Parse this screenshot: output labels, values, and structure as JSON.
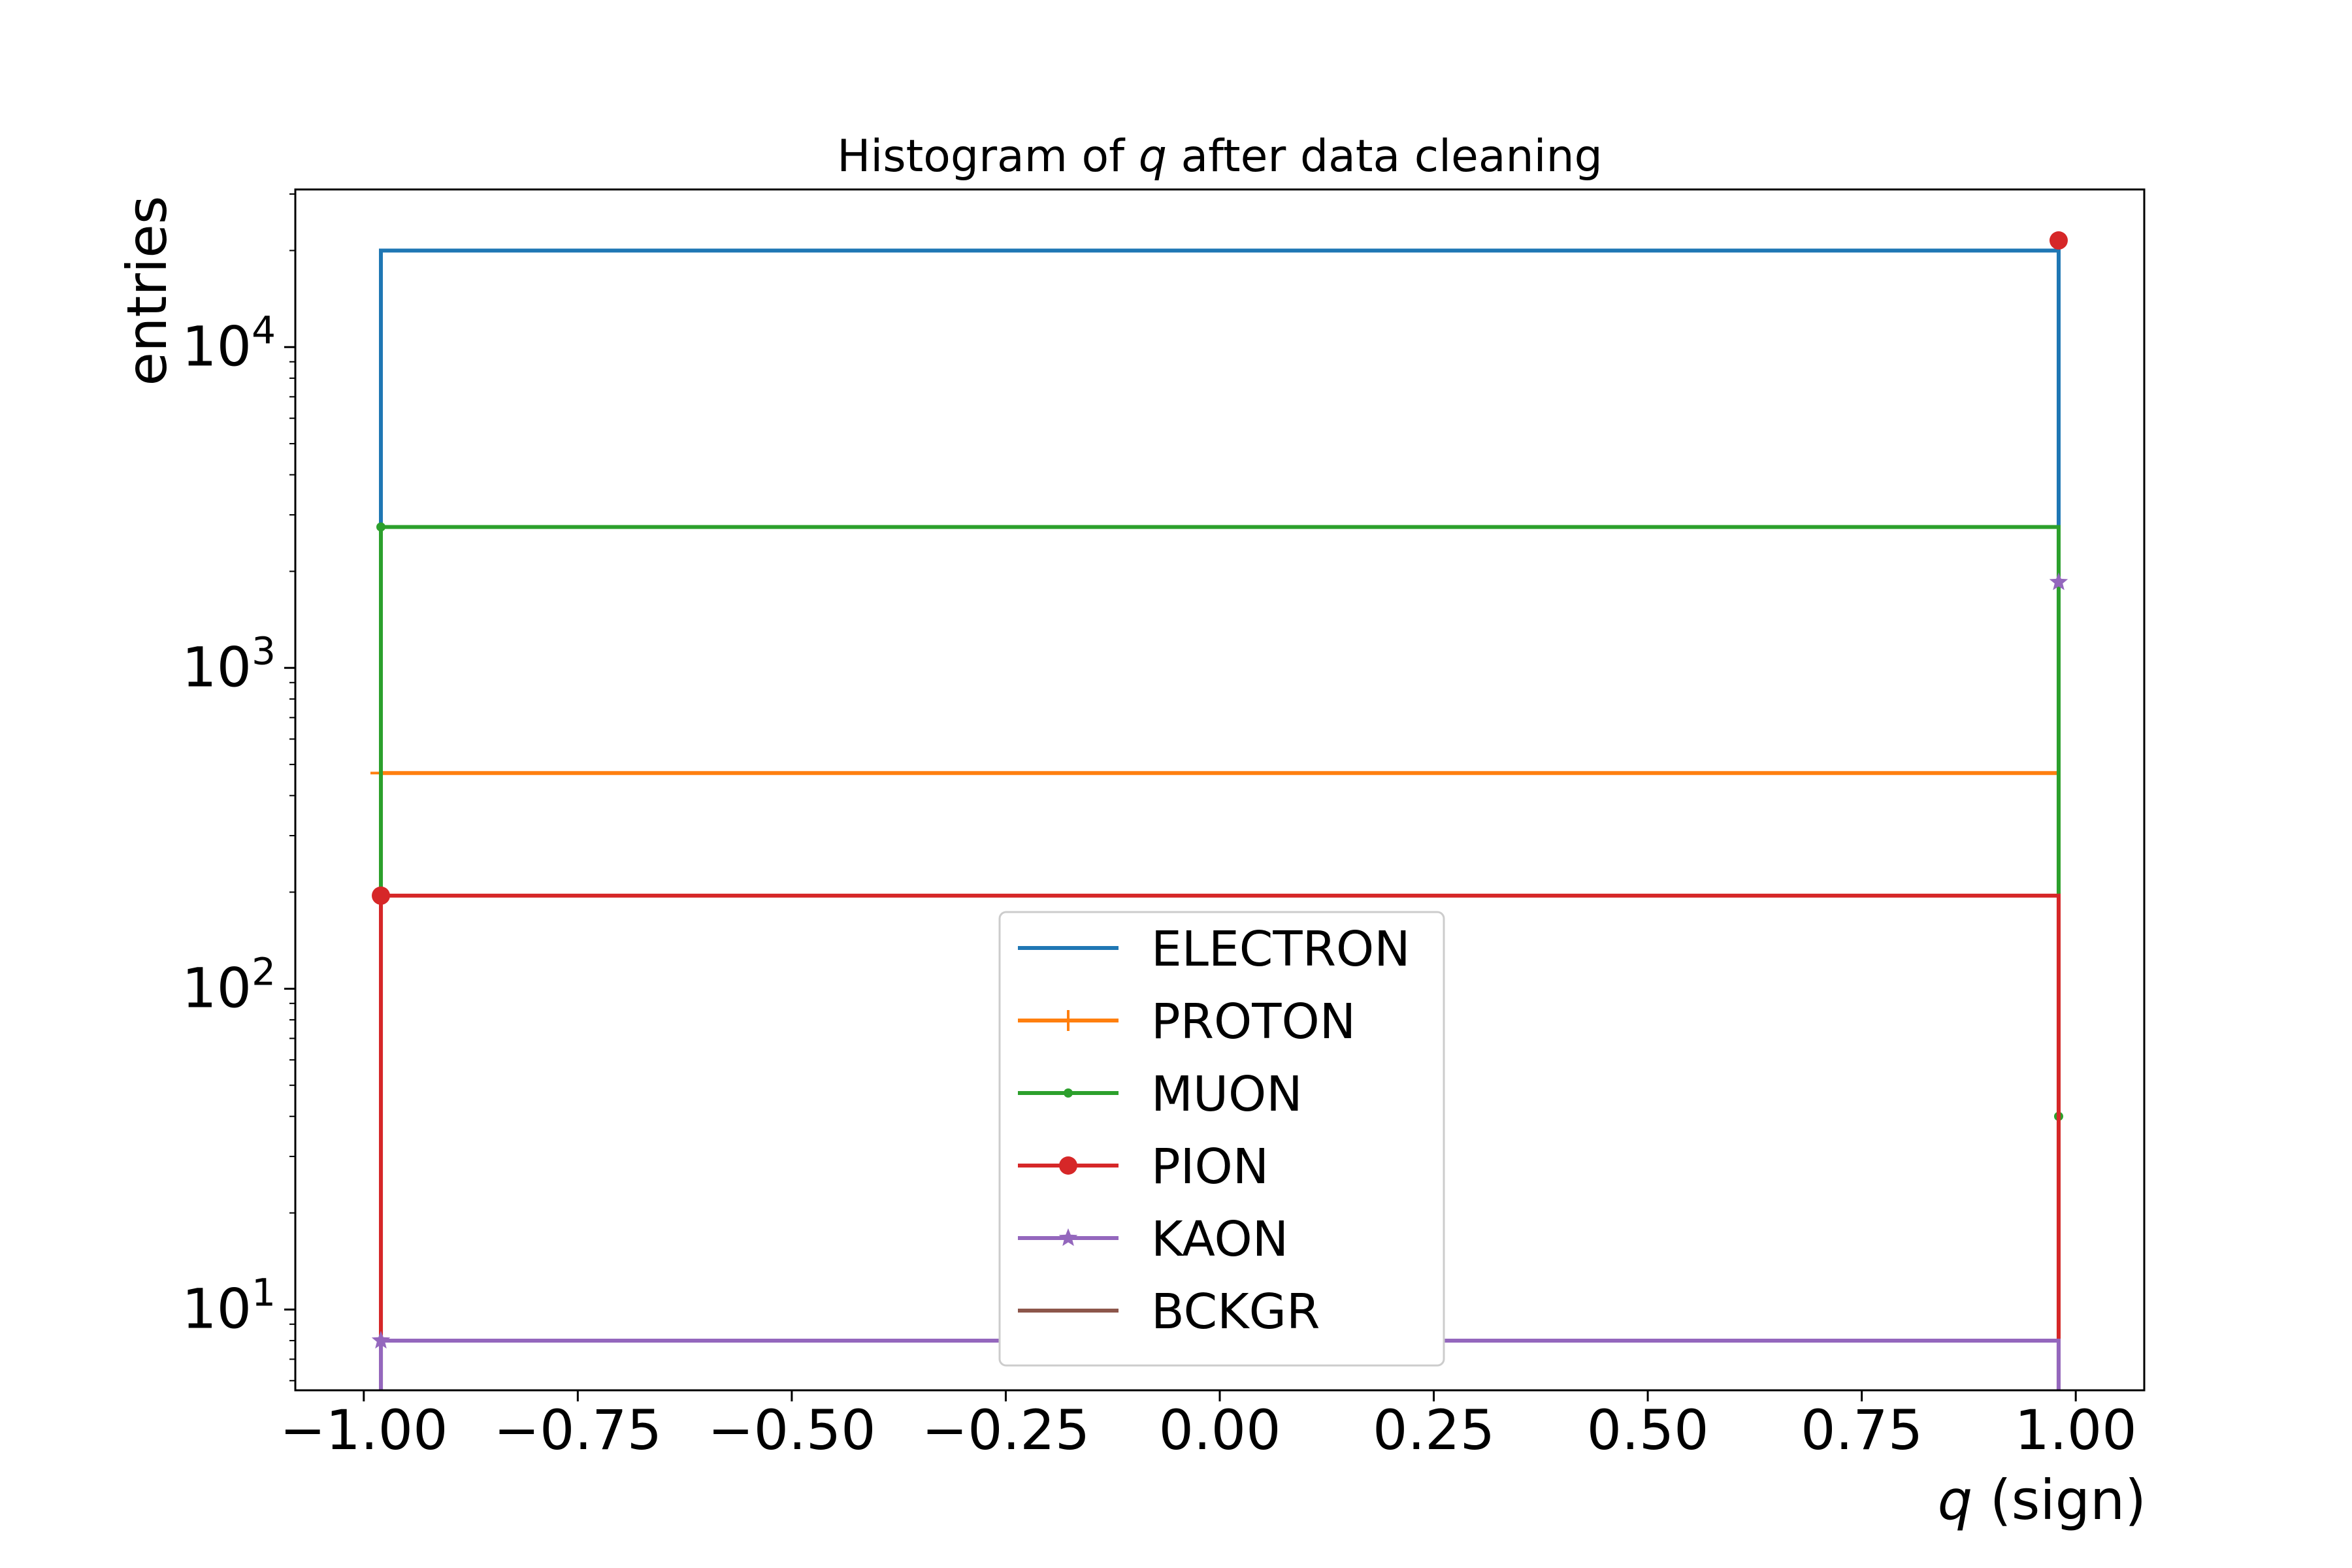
{
  "chart_data": {
    "type": "line",
    "title_prefix": "Histogram of ",
    "title_var": "q",
    "title_suffix": " after data cleaning",
    "xlabel_var": "q",
    "xlabel_suffix": " (sign)",
    "ylabel": "entries",
    "yscale": "log",
    "xlim": [
      -1.08,
      1.08
    ],
    "ylim": [
      5.6,
      31000
    ],
    "x_ticks": [
      {
        "value": -1.0,
        "label": "−1.00"
      },
      {
        "value": -0.75,
        "label": "−0.75"
      },
      {
        "value": -0.5,
        "label": "−0.50"
      },
      {
        "value": -0.25,
        "label": "−0.25"
      },
      {
        "value": 0.0,
        "label": "0.00"
      },
      {
        "value": 0.25,
        "label": "0.25"
      },
      {
        "value": 0.5,
        "label": "0.50"
      },
      {
        "value": 0.75,
        "label": "0.75"
      },
      {
        "value": 1.0,
        "label": "1.00"
      }
    ],
    "y_ticks": [
      {
        "value": 10,
        "base": "10",
        "exp": "1"
      },
      {
        "value": 100,
        "base": "10",
        "exp": "2"
      },
      {
        "value": 1000,
        "base": "10",
        "exp": "3"
      },
      {
        "value": 10000,
        "base": "10",
        "exp": "4"
      }
    ],
    "legend_position": "lower-center",
    "series": [
      {
        "name": "ELECTRON",
        "color": "#1f77b4",
        "marker": "none",
        "x": [
          -0.98,
          0.98
        ],
        "values": [
          20000,
          0
        ]
      },
      {
        "name": "PROTON",
        "color": "#ff7f0e",
        "marker": "plus",
        "x": [
          -0.98,
          0.98
        ],
        "values": [
          470,
          0
        ]
      },
      {
        "name": "MUON",
        "color": "#2ca02c",
        "marker": "point",
        "x": [
          -0.98,
          0.98
        ],
        "values": [
          2750,
          40
        ]
      },
      {
        "name": "PION",
        "color": "#d62728",
        "marker": "circle",
        "x": [
          -0.98,
          0.98
        ],
        "values": [
          195,
          21500
        ]
      },
      {
        "name": "KAON",
        "color": "#9467bd",
        "marker": "star",
        "x": [
          -0.98,
          0.98
        ],
        "values": [
          8,
          1850
        ]
      },
      {
        "name": "BCKGR",
        "color": "#8c564b",
        "marker": "none",
        "x": [
          -0.98,
          0.98
        ],
        "values": [
          0,
          0
        ]
      }
    ]
  }
}
